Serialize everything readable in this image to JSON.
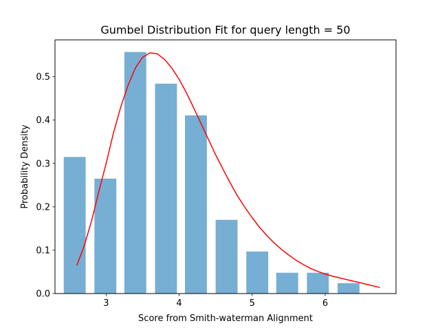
{
  "chart_data": {
    "type": "bar",
    "title": "Gumbel Distribution Fit for query length = 50",
    "xlabel": "Score from Smith-waterman Alignment",
    "ylabel": "Probability Density",
    "xlim": [
      2.3,
      6.97
    ],
    "ylim": [
      0,
      0.585
    ],
    "xticks": [
      3,
      4,
      5,
      6
    ],
    "yticks": [
      0.0,
      0.1,
      0.2,
      0.3,
      0.4,
      0.5
    ],
    "ytick_labels": [
      "0.0",
      "0.1",
      "0.2",
      "0.3",
      "0.4",
      "0.5"
    ],
    "grid": false,
    "bar_color": "#77aed3",
    "line_color": "#ff0000",
    "series": [
      {
        "type": "bar",
        "bar_width": 0.3,
        "x": [
          2.57,
          2.99,
          3.4,
          3.82,
          4.23,
          4.65,
          5.07,
          5.48,
          5.9,
          6.32
        ],
        "values": [
          0.315,
          0.265,
          0.557,
          0.484,
          0.411,
          0.17,
          0.097,
          0.048,
          0.048,
          0.024
        ]
      },
      {
        "type": "line",
        "x": [
          2.6,
          2.7,
          2.8,
          2.9,
          3.0,
          3.1,
          3.2,
          3.3,
          3.4,
          3.5,
          3.6,
          3.7,
          3.8,
          3.9,
          4.0,
          4.1,
          4.2,
          4.3,
          4.4,
          4.5,
          4.6,
          4.7,
          4.8,
          4.9,
          5.0,
          5.1,
          5.2,
          5.3,
          5.4,
          5.5,
          5.6,
          5.7,
          5.8,
          5.9,
          6.0,
          6.1,
          6.2,
          6.3,
          6.4,
          6.5,
          6.6,
          6.75
        ],
        "values": [
          0.065,
          0.11,
          0.167,
          0.235,
          0.3,
          0.37,
          0.43,
          0.48,
          0.52,
          0.545,
          0.555,
          0.553,
          0.54,
          0.52,
          0.494,
          0.463,
          0.428,
          0.392,
          0.356,
          0.32,
          0.287,
          0.255,
          0.225,
          0.199,
          0.175,
          0.153,
          0.134,
          0.117,
          0.102,
          0.089,
          0.077,
          0.067,
          0.058,
          0.051,
          0.045,
          0.04,
          0.036,
          0.032,
          0.028,
          0.024,
          0.02,
          0.014
        ]
      }
    ]
  }
}
